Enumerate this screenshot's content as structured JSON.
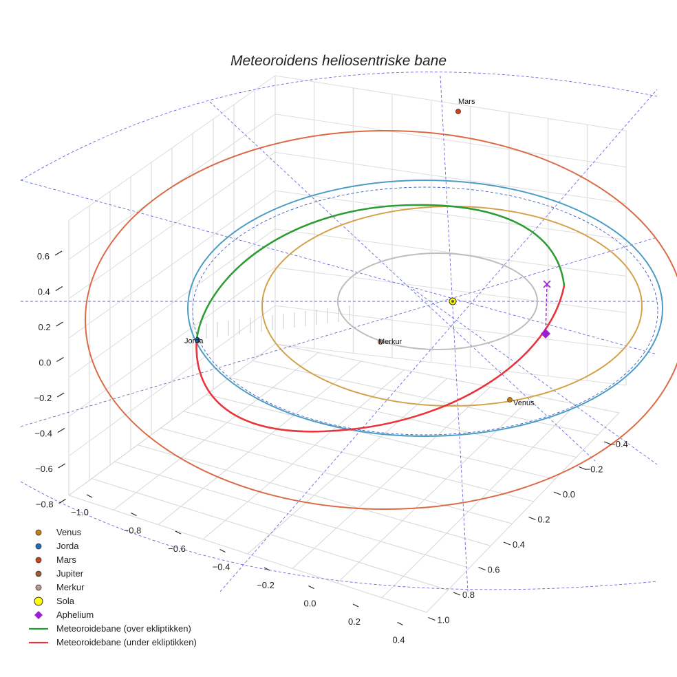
{
  "chart_data": {
    "type": "line",
    "projection": "3d",
    "title": "Meteoroidens heliosentriske bane",
    "grid": true,
    "legend_position": "bottom-left",
    "axes": {
      "x": {
        "ticks": [
          "−1.0",
          "−0.8",
          "−0.6",
          "−0.4",
          "−0.2",
          "0.0",
          "0.2",
          "0.4"
        ],
        "label": ""
      },
      "y": {
        "ticks": [
          "−0.4",
          "−0.2",
          "0.0",
          "0.2",
          "0.4",
          "0.6",
          "0.8",
          "1.0"
        ],
        "label": ""
      },
      "z": {
        "ticks": [
          "0.6",
          "0.4",
          "0.2",
          "0.0",
          "−0.2",
          "−0.4",
          "−0.6",
          "−0.8"
        ],
        "label": ""
      }
    },
    "orbits": [
      {
        "name": "Merkur",
        "color": "#bdbdbd"
      },
      {
        "name": "Venus",
        "color": "#d4a14a"
      },
      {
        "name": "Jorda",
        "color": "#4a9cc4"
      },
      {
        "name": "Mars",
        "color": "#d96a44"
      },
      {
        "name": "Meteoroidebane (over ekliptikken)",
        "color": "#2e9c35"
      },
      {
        "name": "Meteoroidebane (under ekliptikken)",
        "color": "#e8343a"
      }
    ],
    "planet_labels": [
      {
        "name": "Mars",
        "text": "Mars"
      },
      {
        "name": "Jorda",
        "text": "Jorda"
      },
      {
        "name": "Merkur",
        "text": "Merkur"
      },
      {
        "name": "Venus",
        "text": "Venus"
      }
    ],
    "legend": [
      {
        "label": "Venus",
        "marker": "circle",
        "color": "#c67c16"
      },
      {
        "label": "Jorda",
        "marker": "circle",
        "color": "#1f6fb4"
      },
      {
        "label": "Mars",
        "marker": "circle",
        "color": "#c9421c"
      },
      {
        "label": "Jupiter",
        "marker": "circle",
        "color": "#9a5a2e"
      },
      {
        "label": "Merkur",
        "marker": "circle",
        "color": "#b89a8c"
      },
      {
        "label": "Sola",
        "marker": "circle-large",
        "color": "#ffff00"
      },
      {
        "label": "Aphelium",
        "marker": "diamond",
        "color": "#9b1fd0"
      },
      {
        "label": "Meteoroidebane (over ekliptikken)",
        "marker": "line",
        "color": "#1f9c2a"
      },
      {
        "label": "Meteoroidebane (under ekliptikken)",
        "marker": "line",
        "color": "#e8343a"
      }
    ]
  }
}
